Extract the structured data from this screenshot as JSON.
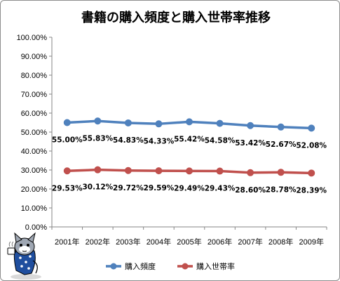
{
  "chart_data": {
    "type": "line",
    "title": "書籍の購入頻度と購入世帯率推移",
    "categories": [
      "2001年",
      "2002年",
      "2003年",
      "2004年",
      "2005年",
      "2006年",
      "2007年",
      "2008年",
      "2009年"
    ],
    "ylim": [
      0,
      100
    ],
    "ytick_labels": [
      "0.00%",
      "10.00%",
      "20.00%",
      "30.00%",
      "40.00%",
      "50.00%",
      "60.00%",
      "70.00%",
      "80.00%",
      "90.00%",
      "100.00%"
    ],
    "grid": false,
    "legend_position": "bottom",
    "series": [
      {
        "name": "購入頻度",
        "color": "#4f81bd",
        "values": [
          55.0,
          55.83,
          54.83,
          54.33,
          55.42,
          54.58,
          53.42,
          52.67,
          52.08
        ],
        "labels": [
          "55.00%",
          "55.83%",
          "54.83%",
          "54.33%",
          "55.42%",
          "54.58%",
          "53.42%",
          "52.67%",
          "52.08%"
        ]
      },
      {
        "name": "購入世帯率",
        "color": "#c0504d",
        "values": [
          29.53,
          30.12,
          29.72,
          29.59,
          29.49,
          29.43,
          28.6,
          28.78,
          28.39
        ],
        "labels": [
          "29.53%",
          "30.12%",
          "29.72%",
          "29.59%",
          "29.49%",
          "29.43%",
          "28.60%",
          "28.78%",
          "28.39%"
        ]
      }
    ]
  },
  "mascot": {
    "icon": "cat-mascot-icon"
  }
}
